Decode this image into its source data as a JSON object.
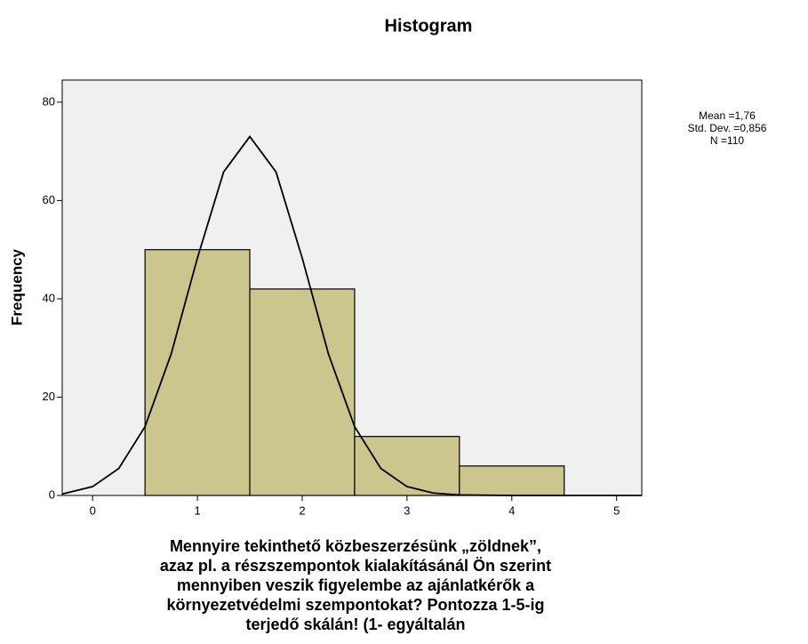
{
  "chart_data": {
    "type": "histogram",
    "title": "Histogram",
    "y_label": "Frequency",
    "x_label_lines": [
      "Mennyire tekinthető közbeszerzésünk „zöldnek”,",
      "azaz pl. a részszempontok kialakításánál Ön szerint",
      "mennyiben veszik figyelembe az ajánlatkérők a",
      "környezetvédelmi szempontokat? Pontozza 1-5-ig",
      "terjedő skálán! (1- egyáltalán"
    ],
    "bins": [
      0.5,
      1.5,
      2.5,
      3.5,
      4.5
    ],
    "counts": [
      50,
      42,
      12,
      6
    ],
    "color": "#cbc68e",
    "curve": {
      "x": [
        -0.29,
        0,
        0.25,
        0.5,
        0.75,
        1,
        1.25,
        1.5,
        1.75,
        2,
        2.25,
        2.5,
        2.75,
        3,
        3.25,
        3.5,
        4,
        4.5,
        5.24
      ],
      "values": [
        0.3,
        1.8,
        5.5,
        14,
        28.8,
        48.3,
        65.8,
        73,
        65.8,
        48.3,
        28.8,
        14,
        5.5,
        1.8,
        0.5,
        0.1,
        0,
        0,
        0
      ]
    },
    "stats": [
      "Mean =1,76",
      "Std. Dev. =0,856",
      "N =110"
    ],
    "xlim": [
      -0.29,
      5.24
    ],
    "ylim": [
      0,
      84.5
    ],
    "xticks": [
      0,
      1,
      2,
      3,
      4,
      5
    ],
    "yticks": [
      0,
      20,
      40,
      60,
      80
    ]
  }
}
